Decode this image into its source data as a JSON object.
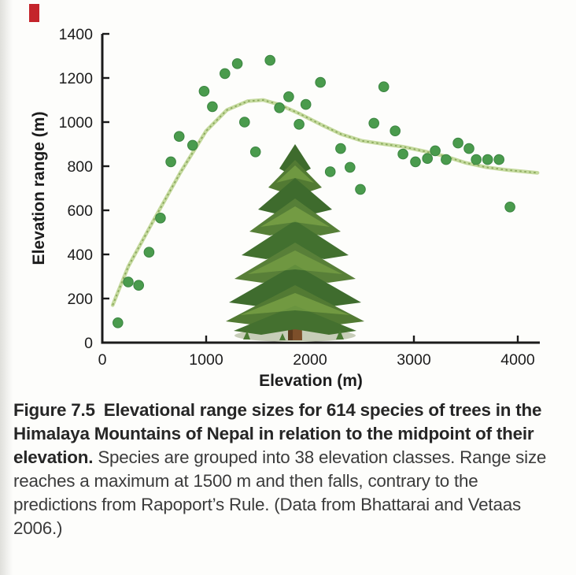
{
  "page": {
    "background_color": "#fdfdfb",
    "red_edge_mark_color": "#c4242b"
  },
  "caption": {
    "label": "Figure 7.5",
    "bold_text": "Elevational range sizes for 614 species of trees in the Himalaya Mountains of Nepal in relation to the midpoint of their elevation.",
    "regular_text": " Species are grouped into 38 elevation classes. Range size reaches a maximum at 1500 m and then falls, contrary to the predictions from Rapoport’s Rule. (Data from Bhattarai and Vetaas 2006.)"
  },
  "chart_data": {
    "type": "scatter",
    "xlabel": "Elevation (m)",
    "ylabel": "Elevation range (m)",
    "xlim": [
      0,
      4250
    ],
    "ylim": [
      0,
      1400
    ],
    "x_ticks": [
      0,
      1000,
      2000,
      3000,
      4000
    ],
    "y_ticks": [
      0,
      200,
      400,
      600,
      800,
      1000,
      1200,
      1400
    ],
    "grid": false,
    "legend": "none",
    "point_color": "#4a9b4d",
    "point_edge_color": "#3a8440",
    "curve_color": "#c5da9e",
    "curve_speckle_color": "#8aa85c",
    "axis_color": "#1b1b1b",
    "center_illustration": "conifer-tree",
    "points": [
      [
        150,
        90
      ],
      [
        250,
        275
      ],
      [
        350,
        260
      ],
      [
        450,
        410
      ],
      [
        560,
        565
      ],
      [
        660,
        820
      ],
      [
        740,
        935
      ],
      [
        870,
        895
      ],
      [
        980,
        1140
      ],
      [
        1060,
        1070
      ],
      [
        1180,
        1220
      ],
      [
        1300,
        1265
      ],
      [
        1370,
        1000
      ],
      [
        1475,
        865
      ],
      [
        1615,
        1280
      ],
      [
        1705,
        1065
      ],
      [
        1795,
        1115
      ],
      [
        1895,
        990
      ],
      [
        1960,
        1080
      ],
      [
        2100,
        1180
      ],
      [
        2195,
        775
      ],
      [
        2295,
        880
      ],
      [
        2385,
        795
      ],
      [
        2485,
        695
      ],
      [
        2615,
        995
      ],
      [
        2710,
        1160
      ],
      [
        2820,
        960
      ],
      [
        2895,
        855
      ],
      [
        3015,
        820
      ],
      [
        3130,
        835
      ],
      [
        3205,
        870
      ],
      [
        3310,
        830
      ],
      [
        3425,
        905
      ],
      [
        3530,
        880
      ],
      [
        3600,
        830
      ],
      [
        3710,
        830
      ],
      [
        3820,
        830
      ],
      [
        3925,
        615
      ]
    ],
    "trend_curve": [
      [
        100,
        170
      ],
      [
        250,
        345
      ],
      [
        500,
        560
      ],
      [
        750,
        770
      ],
      [
        1000,
        960
      ],
      [
        1200,
        1055
      ],
      [
        1400,
        1095
      ],
      [
        1550,
        1100
      ],
      [
        1700,
        1080
      ],
      [
        1900,
        1038
      ],
      [
        2100,
        990
      ],
      [
        2300,
        945
      ],
      [
        2500,
        915
      ],
      [
        2700,
        901
      ],
      [
        2900,
        888
      ],
      [
        3100,
        868
      ],
      [
        3300,
        845
      ],
      [
        3500,
        815
      ],
      [
        3700,
        795
      ],
      [
        3900,
        783
      ],
      [
        4050,
        776
      ],
      [
        4190,
        770
      ]
    ]
  }
}
